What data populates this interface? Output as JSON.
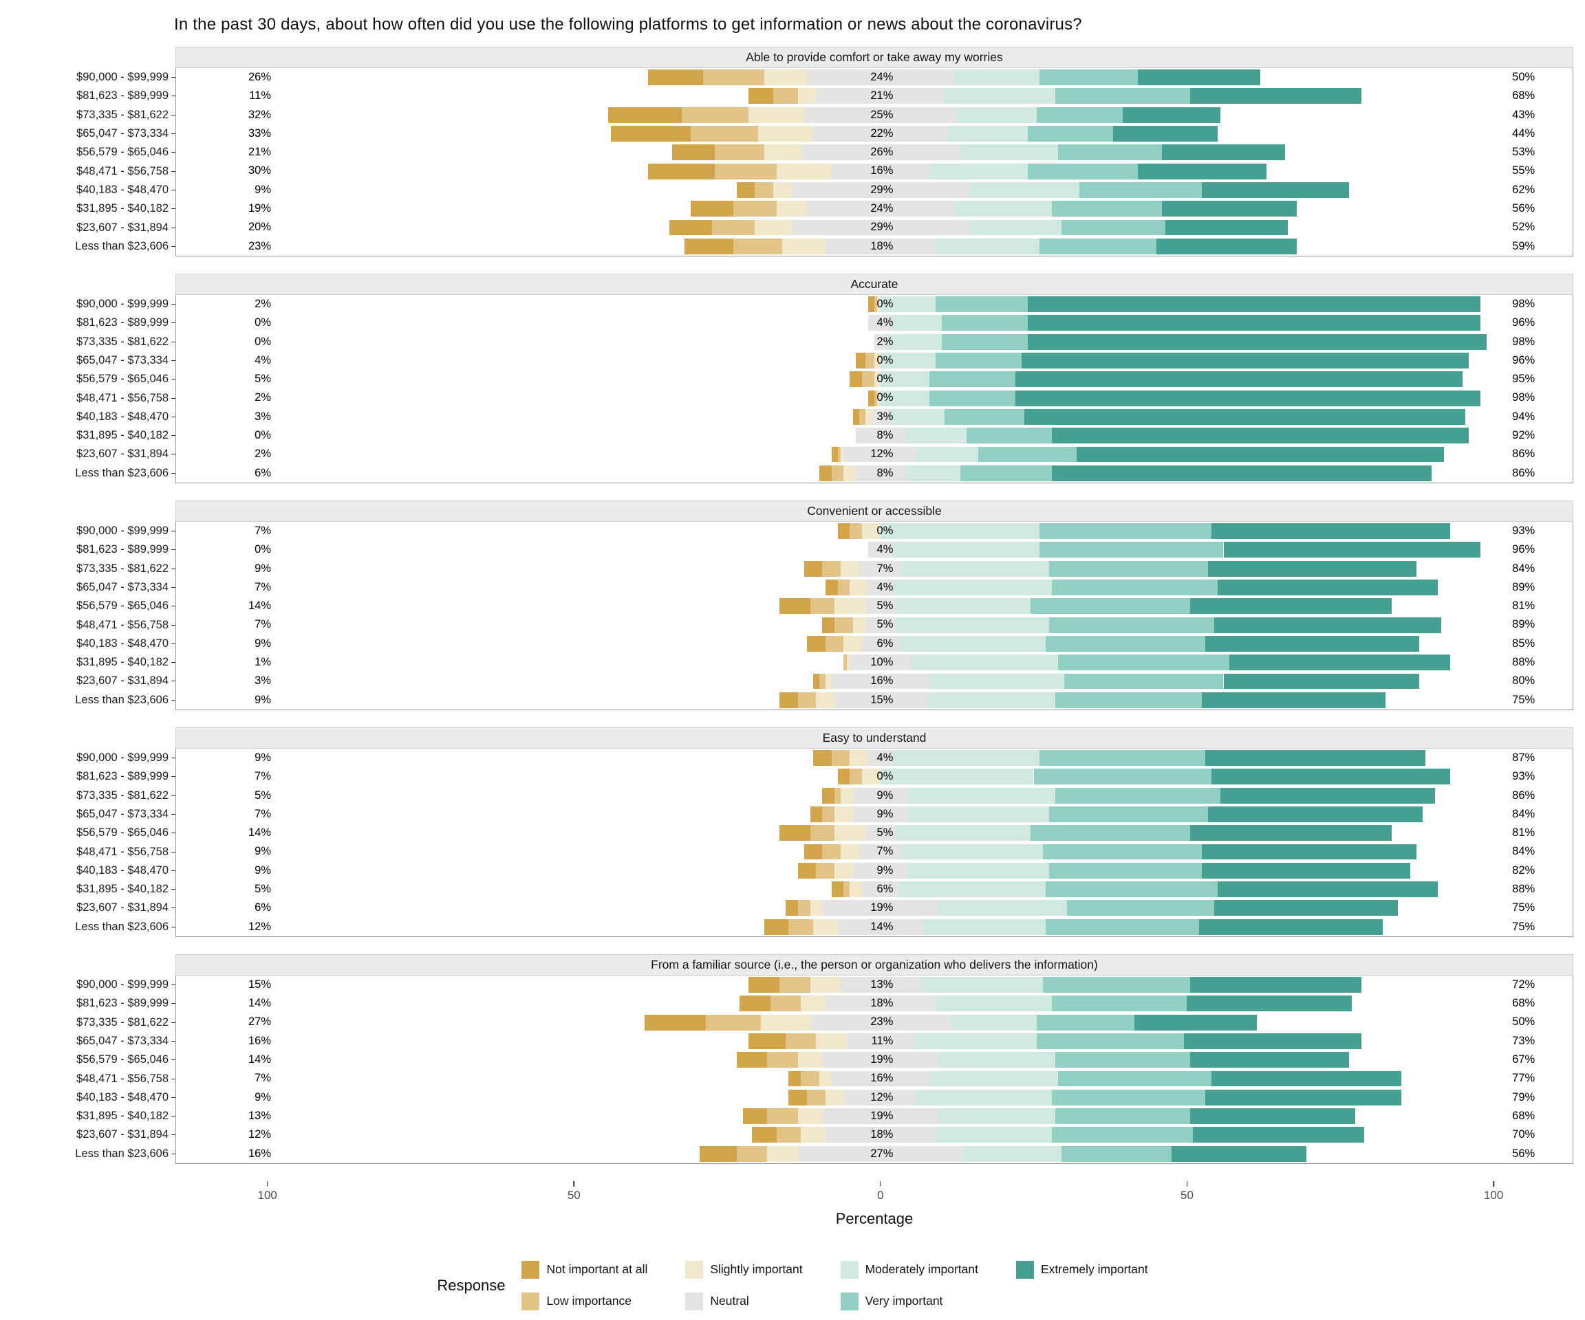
{
  "title": "In the past 30 days, about how often did you use the following platforms to get information or news about the coronavirus?",
  "x_axis": {
    "label": "Percentage",
    "tick_labels": [
      "100",
      "50",
      "0",
      "50",
      "100"
    ],
    "tick_values": [
      -100,
      -50,
      0,
      50,
      100
    ]
  },
  "legend": {
    "title": "Response",
    "items": [
      {
        "label": "Not important at all",
        "color": "#D2A54B"
      },
      {
        "label": "Low importance",
        "color": "#E3C488"
      },
      {
        "label": "Slightly important",
        "color": "#F2E8CC"
      },
      {
        "label": "Neutral",
        "color": "#E4E4E4"
      },
      {
        "label": "Moderately important",
        "color": "#D2E9E2"
      },
      {
        "label": "Very important",
        "color": "#90CFC2"
      },
      {
        "label": "Extremely important",
        "color": "#45A092"
      }
    ]
  },
  "chart_data": {
    "type": "diverging-stacked-bar",
    "x_range": [
      -115,
      113
    ],
    "segment_names": [
      "Not important at all",
      "Low importance",
      "Slightly important",
      "Neutral",
      "Moderately important",
      "Very important",
      "Extremely important"
    ],
    "colors": [
      "#D2A54B",
      "#E3C488",
      "#F2E8CC",
      "#E4E4E4",
      "#D2E9E2",
      "#90CFC2",
      "#45A092"
    ],
    "categories": [
      "$90,000 - $99,999",
      "$81,623 - $89,999",
      "$73,335 - $81,622",
      "$65,047 - $73,334",
      "$56,579 - $65,046",
      "$48,471 - $56,758",
      "$40,183 - $48,470",
      "$31,895 - $40,182",
      "$23,607 - $31,894",
      "Less than $23,606"
    ],
    "panels": [
      {
        "title": "Able to provide comfort or take away my worries",
        "rows": [
          {
            "left": "26%",
            "neutral": "24%",
            "right": "50%",
            "segments": [
              9,
              10,
              7,
              24,
              14,
              16,
              20
            ]
          },
          {
            "left": "11%",
            "neutral": "21%",
            "right": "68%",
            "segments": [
              4,
              4,
              3,
              21,
              18,
              22,
              28
            ]
          },
          {
            "left": "32%",
            "neutral": "25%",
            "right": "43%",
            "segments": [
              12,
              11,
              9,
              25,
              13,
              14,
              16
            ]
          },
          {
            "left": "33%",
            "neutral": "22%",
            "right": "44%",
            "segments": [
              13,
              11,
              9,
              22,
              13,
              14,
              17
            ]
          },
          {
            "left": "21%",
            "neutral": "26%",
            "right": "53%",
            "segments": [
              7,
              8,
              6,
              26,
              16,
              17,
              20
            ]
          },
          {
            "left": "30%",
            "neutral": "16%",
            "right": "55%",
            "segments": [
              11,
              10,
              9,
              16,
              16,
              18,
              21
            ]
          },
          {
            "left": "9%",
            "neutral": "29%",
            "right": "62%",
            "segments": [
              3,
              3,
              3,
              29,
              18,
              20,
              24
            ]
          },
          {
            "left": "19%",
            "neutral": "24%",
            "right": "56%",
            "segments": [
              7,
              7,
              5,
              24,
              16,
              18,
              22
            ]
          },
          {
            "left": "20%",
            "neutral": "29%",
            "right": "52%",
            "segments": [
              7,
              7,
              6,
              29,
              15,
              17,
              20
            ]
          },
          {
            "left": "23%",
            "neutral": "18%",
            "right": "59%",
            "segments": [
              8,
              8,
              7,
              18,
              17,
              19,
              23
            ]
          }
        ]
      },
      {
        "title": "Accurate",
        "rows": [
          {
            "left": "2%",
            "neutral": "0%",
            "right": "98%",
            "segments": [
              1,
              0.5,
              0.5,
              0,
              9,
              15,
              74
            ]
          },
          {
            "left": "0%",
            "neutral": "4%",
            "right": "96%",
            "segments": [
              0,
              0,
              0,
              4,
              8,
              14,
              74
            ]
          },
          {
            "left": "0%",
            "neutral": "2%",
            "right": "98%",
            "segments": [
              0,
              0,
              0,
              2,
              9,
              14,
              75
            ]
          },
          {
            "left": "4%",
            "neutral": "0%",
            "right": "96%",
            "segments": [
              1.5,
              1.5,
              1,
              0,
              9,
              14,
              73
            ]
          },
          {
            "left": "5%",
            "neutral": "0%",
            "right": "95%",
            "segments": [
              2,
              2,
              1,
              0,
              8,
              14,
              73
            ]
          },
          {
            "left": "2%",
            "neutral": "0%",
            "right": "98%",
            "segments": [
              1,
              0.5,
              0.5,
              0,
              8,
              14,
              76
            ]
          },
          {
            "left": "3%",
            "neutral": "3%",
            "right": "94%",
            "segments": [
              1,
              1,
              1,
              3,
              9,
              13,
              72
            ]
          },
          {
            "left": "0%",
            "neutral": "8%",
            "right": "92%",
            "segments": [
              0,
              0,
              0,
              8,
              10,
              14,
              68
            ]
          },
          {
            "left": "2%",
            "neutral": "12%",
            "right": "86%",
            "segments": [
              1,
              0.5,
              0.5,
              12,
              10,
              16,
              60
            ]
          },
          {
            "left": "6%",
            "neutral": "8%",
            "right": "86%",
            "segments": [
              2,
              2,
              2,
              8,
              9,
              15,
              62
            ]
          }
        ]
      },
      {
        "title": "Convenient or accessible",
        "rows": [
          {
            "left": "7%",
            "neutral": "0%",
            "right": "93%",
            "segments": [
              2,
              2,
              3,
              0,
              26,
              28,
              39
            ]
          },
          {
            "left": "0%",
            "neutral": "4%",
            "right": "96%",
            "segments": [
              0,
              0,
              0,
              4,
              24,
              30,
              42
            ]
          },
          {
            "left": "9%",
            "neutral": "7%",
            "right": "84%",
            "segments": [
              3,
              3,
              3,
              7,
              24,
              26,
              34
            ]
          },
          {
            "left": "7%",
            "neutral": "4%",
            "right": "89%",
            "segments": [
              2,
              2,
              3,
              4,
              26,
              27,
              36
            ]
          },
          {
            "left": "14%",
            "neutral": "5%",
            "right": "81%",
            "segments": [
              5,
              4,
              5,
              5,
              22,
              26,
              33
            ]
          },
          {
            "left": "7%",
            "neutral": "5%",
            "right": "89%",
            "segments": [
              2,
              3,
              2,
              5,
              25,
              27,
              37
            ]
          },
          {
            "left": "9%",
            "neutral": "6%",
            "right": "85%",
            "segments": [
              3,
              3,
              3,
              6,
              24,
              26,
              35
            ]
          },
          {
            "left": "1%",
            "neutral": "10%",
            "right": "88%",
            "segments": [
              0,
              0.5,
              0.5,
              10,
              24,
              28,
              36
            ]
          },
          {
            "left": "3%",
            "neutral": "16%",
            "right": "80%",
            "segments": [
              1,
              1,
              1,
              16,
              22,
              26,
              32
            ]
          },
          {
            "left": "9%",
            "neutral": "15%",
            "right": "75%",
            "segments": [
              3,
              3,
              3,
              15,
              21,
              24,
              30
            ]
          }
        ]
      },
      {
        "title": "Easy to understand",
        "rows": [
          {
            "left": "9%",
            "neutral": "4%",
            "right": "87%",
            "segments": [
              3,
              3,
              3,
              4,
              24,
              27,
              36
            ]
          },
          {
            "left": "7%",
            "neutral": "0%",
            "right": "93%",
            "segments": [
              2,
              2,
              3,
              0,
              25,
              29,
              39
            ]
          },
          {
            "left": "5%",
            "neutral": "9%",
            "right": "86%",
            "segments": [
              2,
              1,
              2,
              9,
              24,
              27,
              35
            ]
          },
          {
            "left": "7%",
            "neutral": "9%",
            "right": "84%",
            "segments": [
              2,
              2,
              3,
              9,
              23,
              26,
              35
            ]
          },
          {
            "left": "14%",
            "neutral": "5%",
            "right": "81%",
            "segments": [
              5,
              4,
              5,
              5,
              22,
              26,
              33
            ]
          },
          {
            "left": "9%",
            "neutral": "7%",
            "right": "84%",
            "segments": [
              3,
              3,
              3,
              7,
              23,
              26,
              35
            ]
          },
          {
            "left": "9%",
            "neutral": "9%",
            "right": "82%",
            "segments": [
              3,
              3,
              3,
              9,
              23,
              25,
              34
            ]
          },
          {
            "left": "5%",
            "neutral": "6%",
            "right": "88%",
            "segments": [
              2,
              1,
              2,
              6,
              24,
              28,
              36
            ]
          },
          {
            "left": "6%",
            "neutral": "19%",
            "right": "75%",
            "segments": [
              2,
              2,
              2,
              19,
              21,
              24,
              30
            ]
          },
          {
            "left": "12%",
            "neutral": "14%",
            "right": "75%",
            "segments": [
              4,
              4,
              4,
              14,
              20,
              25,
              30
            ]
          }
        ]
      },
      {
        "title": "From a familiar source (i.e., the person or organization who delivers the information)",
        "rows": [
          {
            "left": "15%",
            "neutral": "13%",
            "right": "72%",
            "segments": [
              5,
              5,
              5,
              13,
              20,
              24,
              28
            ]
          },
          {
            "left": "14%",
            "neutral": "18%",
            "right": "68%",
            "segments": [
              5,
              5,
              4,
              18,
              19,
              22,
              27
            ]
          },
          {
            "left": "27%",
            "neutral": "23%",
            "right": "50%",
            "segments": [
              10,
              9,
              8,
              23,
              14,
              16,
              20
            ]
          },
          {
            "left": "16%",
            "neutral": "11%",
            "right": "73%",
            "segments": [
              6,
              5,
              5,
              11,
              20,
              24,
              29
            ]
          },
          {
            "left": "14%",
            "neutral": "19%",
            "right": "67%",
            "segments": [
              5,
              5,
              4,
              19,
              19,
              22,
              26
            ]
          },
          {
            "left": "7%",
            "neutral": "16%",
            "right": "77%",
            "segments": [
              2,
              3,
              2,
              16,
              21,
              25,
              31
            ]
          },
          {
            "left": "9%",
            "neutral": "12%",
            "right": "79%",
            "segments": [
              3,
              3,
              3,
              12,
              22,
              25,
              32
            ]
          },
          {
            "left": "13%",
            "neutral": "19%",
            "right": "68%",
            "segments": [
              4,
              5,
              4,
              19,
              19,
              22,
              27
            ]
          },
          {
            "left": "12%",
            "neutral": "18%",
            "right": "70%",
            "segments": [
              4,
              4,
              4,
              18,
              19,
              23,
              28
            ]
          },
          {
            "left": "16%",
            "neutral": "27%",
            "right": "56%",
            "segments": [
              6,
              5,
              5,
              27,
              16,
              18,
              22
            ]
          }
        ]
      }
    ]
  }
}
